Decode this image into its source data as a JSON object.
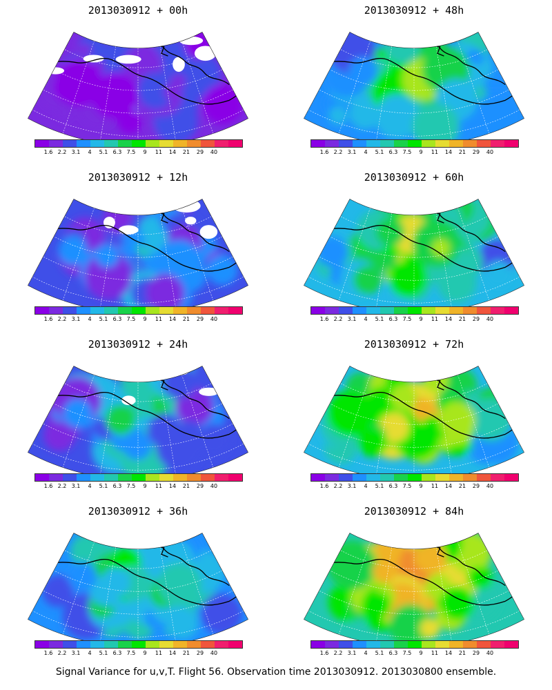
{
  "panels": [
    {
      "id": "p00",
      "title": "2013030912 + 00h",
      "lead_hours": 0
    },
    {
      "id": "p12",
      "title": "2013030912 + 12h",
      "lead_hours": 12
    },
    {
      "id": "p24",
      "title": "2013030912 + 24h",
      "lead_hours": 24
    },
    {
      "id": "p36",
      "title": "2013030912 + 36h",
      "lead_hours": 36
    },
    {
      "id": "p48",
      "title": "2013030912 + 48h",
      "lead_hours": 48
    },
    {
      "id": "p60",
      "title": "2013030912 + 60h",
      "lead_hours": 60
    },
    {
      "id": "p72",
      "title": "2013030912 + 72h",
      "lead_hours": 72
    },
    {
      "id": "p84",
      "title": "2013030912 + 84h",
      "lead_hours": 84
    }
  ],
  "colorbar": {
    "labels": [
      "1.6",
      "2.2",
      "3.1",
      "4",
      "5.1",
      "6.3",
      "7.5",
      "9",
      "11",
      "14",
      "21",
      "29",
      "40"
    ],
    "colors": [
      "#8a00e6",
      "#7b2ae0",
      "#3f4fe8",
      "#1e90ff",
      "#22b8e8",
      "#22c8b0",
      "#19d24a",
      "#00e600",
      "#a8e61e",
      "#e6dc32",
      "#f0b428",
      "#f08c2d",
      "#f0553c",
      "#f01e6e",
      "#f0006e"
    ]
  },
  "footer": "Signal Variance for u,v,T. Flight 56. Observation time 2013030912. 2013030800 ensemble."
}
